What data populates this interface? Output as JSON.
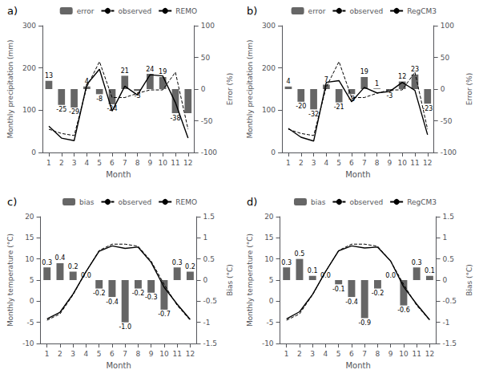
{
  "chart_data": [
    {
      "type": "line",
      "title": "a)",
      "xlabel": "Month",
      "ylabel": "Monthly precipitation (mm)",
      "y2label": "Error (%)",
      "categories": [
        "1",
        "2",
        "3",
        "4",
        "5",
        "6",
        "7",
        "8",
        "9",
        "10",
        "11",
        "12"
      ],
      "series": [
        {
          "name": "error",
          "type": "bar",
          "axis": "y2",
          "color": "#666666",
          "values": [
            13,
            -25,
            -29,
            4,
            -8,
            -24,
            21,
            -3,
            24,
            19,
            -38,
            -38
          ],
          "value_labels": [
            "13",
            "-25",
            "-29",
            "4",
            "-8",
            "-24",
            "21",
            "-3",
            "24",
            "19",
            "-38",
            null
          ],
          "data_labels": true
        },
        {
          "name": "observed",
          "type": "line",
          "line_style": "dashed",
          "color": "#000000",
          "values": [
            55,
            45,
            40,
            155,
            215,
            130,
            130,
            140,
            148,
            148,
            190,
            55
          ]
        },
        {
          "name": "REMO",
          "type": "line",
          "line_style": "solid",
          "color": "#000000",
          "values": [
            62,
            34,
            28,
            161,
            197,
            98,
            157,
            136,
            184,
            181,
            118,
            34
          ]
        }
      ],
      "ylim": [
        0,
        300
      ],
      "yticks": [
        0,
        100,
        200,
        300
      ],
      "y2lim": [
        -100,
        100
      ],
      "y2ticks": [
        -100,
        -50,
        0,
        50,
        100
      ],
      "grid": false,
      "legend": "upper right"
    },
    {
      "type": "line",
      "title": "b)",
      "xlabel": "Month",
      "ylabel": "Monthly precipitation (mm)",
      "y2label": "Error (%)",
      "categories": [
        "1",
        "2",
        "3",
        "4",
        "5",
        "6",
        "7",
        "8",
        "9",
        "10",
        "11",
        "12"
      ],
      "series": [
        {
          "name": "error",
          "type": "bar",
          "axis": "y2",
          "color": "#666666",
          "values": [
            4,
            -20,
            -32,
            7,
            -21,
            -8,
            19,
            1,
            -3,
            12,
            23,
            -23
          ],
          "value_labels": [
            "4",
            "-20",
            "-32",
            "7",
            "-21",
            "-8",
            "19",
            "1",
            "-3",
            "12",
            "23",
            "-23"
          ],
          "data_labels": true
        },
        {
          "name": "observed",
          "type": "line",
          "line_style": "dashed",
          "color": "#000000",
          "values": [
            55,
            45,
            40,
            155,
            215,
            130,
            130,
            140,
            148,
            148,
            190,
            55
          ]
        },
        {
          "name": "RegCM3",
          "type": "line",
          "line_style": "solid",
          "color": "#000000",
          "values": [
            57,
            36,
            27,
            166,
            170,
            120,
            154,
            141,
            144,
            166,
            147,
            42
          ]
        }
      ],
      "ylim": [
        0,
        300
      ],
      "yticks": [
        0,
        100,
        200,
        300
      ],
      "y2lim": [
        -100,
        100
      ],
      "y2ticks": [
        -100,
        -50,
        0,
        50,
        100
      ],
      "grid": false,
      "legend": "upper right"
    },
    {
      "type": "line",
      "title": "c)",
      "xlabel": "Month",
      "ylabel": "Monthly temperature (°C)",
      "y2label": "Bias (°C)",
      "categories": [
        "1",
        "2",
        "3",
        "4",
        "5",
        "6",
        "7",
        "8",
        "9",
        "10",
        "11",
        "12"
      ],
      "series": [
        {
          "name": "bias",
          "type": "bar",
          "axis": "y2",
          "color": "#666666",
          "values": [
            0.3,
            0.4,
            0.2,
            0.0,
            -0.2,
            -0.4,
            -1.0,
            -0.2,
            -0.3,
            -0.7,
            0.3,
            0.2
          ],
          "value_labels": [
            "0.3",
            "0.4",
            "0.2",
            "0.0",
            "-0.2",
            "-0.4",
            "-1.0",
            "-0.2",
            "-0.3",
            "-0.7",
            "0.3",
            "0.2"
          ],
          "data_labels": true
        },
        {
          "name": "observed",
          "type": "line",
          "line_style": "dashed",
          "color": "#000000",
          "values": [
            -4.5,
            -3.0,
            1.5,
            7.0,
            12.0,
            13.5,
            13.5,
            13.0,
            9.5,
            4.0,
            -1.0,
            -4.5
          ]
        },
        {
          "name": "REMO",
          "type": "line",
          "line_style": "solid",
          "color": "#000000",
          "values": [
            -4.2,
            -2.6,
            1.7,
            7.0,
            11.8,
            13.1,
            12.5,
            12.8,
            9.2,
            3.3,
            -0.7,
            -4.3
          ]
        }
      ],
      "ylim": [
        -10,
        20
      ],
      "yticks": [
        -10,
        -5,
        0,
        5,
        10,
        15,
        20
      ],
      "y2lim": [
        -1.5,
        1.5
      ],
      "y2ticks": [
        -1.5,
        -1,
        -0.5,
        0,
        0.5,
        1,
        1.5
      ],
      "grid": false,
      "legend": "upper right"
    },
    {
      "type": "line",
      "title": "d)",
      "xlabel": "Month",
      "ylabel": "Monthly temperature (°C)",
      "y2label": "Bias (°C)",
      "categories": [
        "1",
        "2",
        "3",
        "4",
        "5",
        "6",
        "7",
        "8",
        "9",
        "10",
        "11",
        "12"
      ],
      "series": [
        {
          "name": "bias",
          "type": "bar",
          "axis": "y2",
          "color": "#666666",
          "values": [
            0.3,
            0.5,
            0.1,
            0.0,
            -0.1,
            -0.4,
            -0.9,
            -0.2,
            0.0,
            -0.6,
            0.3,
            0.1
          ],
          "value_labels": [
            "0.3",
            "0.5",
            "0.1",
            "0.0",
            "-0.1",
            "-0.4",
            "-0.9",
            "-0.2",
            "0.0",
            "-0.6",
            "0.3",
            "0.1"
          ],
          "data_labels": true
        },
        {
          "name": "observed",
          "type": "line",
          "line_style": "dashed",
          "color": "#000000",
          "values": [
            -4.5,
            -3.0,
            1.5,
            7.0,
            12.0,
            13.5,
            13.5,
            13.0,
            9.5,
            4.0,
            -1.0,
            -4.5
          ]
        },
        {
          "name": "RegCM3",
          "type": "line",
          "line_style": "solid",
          "color": "#000000",
          "values": [
            -4.2,
            -2.5,
            1.6,
            7.0,
            11.9,
            13.1,
            12.6,
            12.8,
            9.5,
            3.4,
            -0.7,
            -4.4
          ]
        }
      ],
      "ylim": [
        -10,
        20
      ],
      "yticks": [
        -10,
        -5,
        0,
        5,
        10,
        15,
        20
      ],
      "y2lim": [
        -1.5,
        1.5
      ],
      "y2ticks": [
        -1.5,
        -1,
        -0.5,
        0,
        0.5,
        1,
        1.5
      ],
      "grid": false,
      "legend": "upper right"
    }
  ]
}
